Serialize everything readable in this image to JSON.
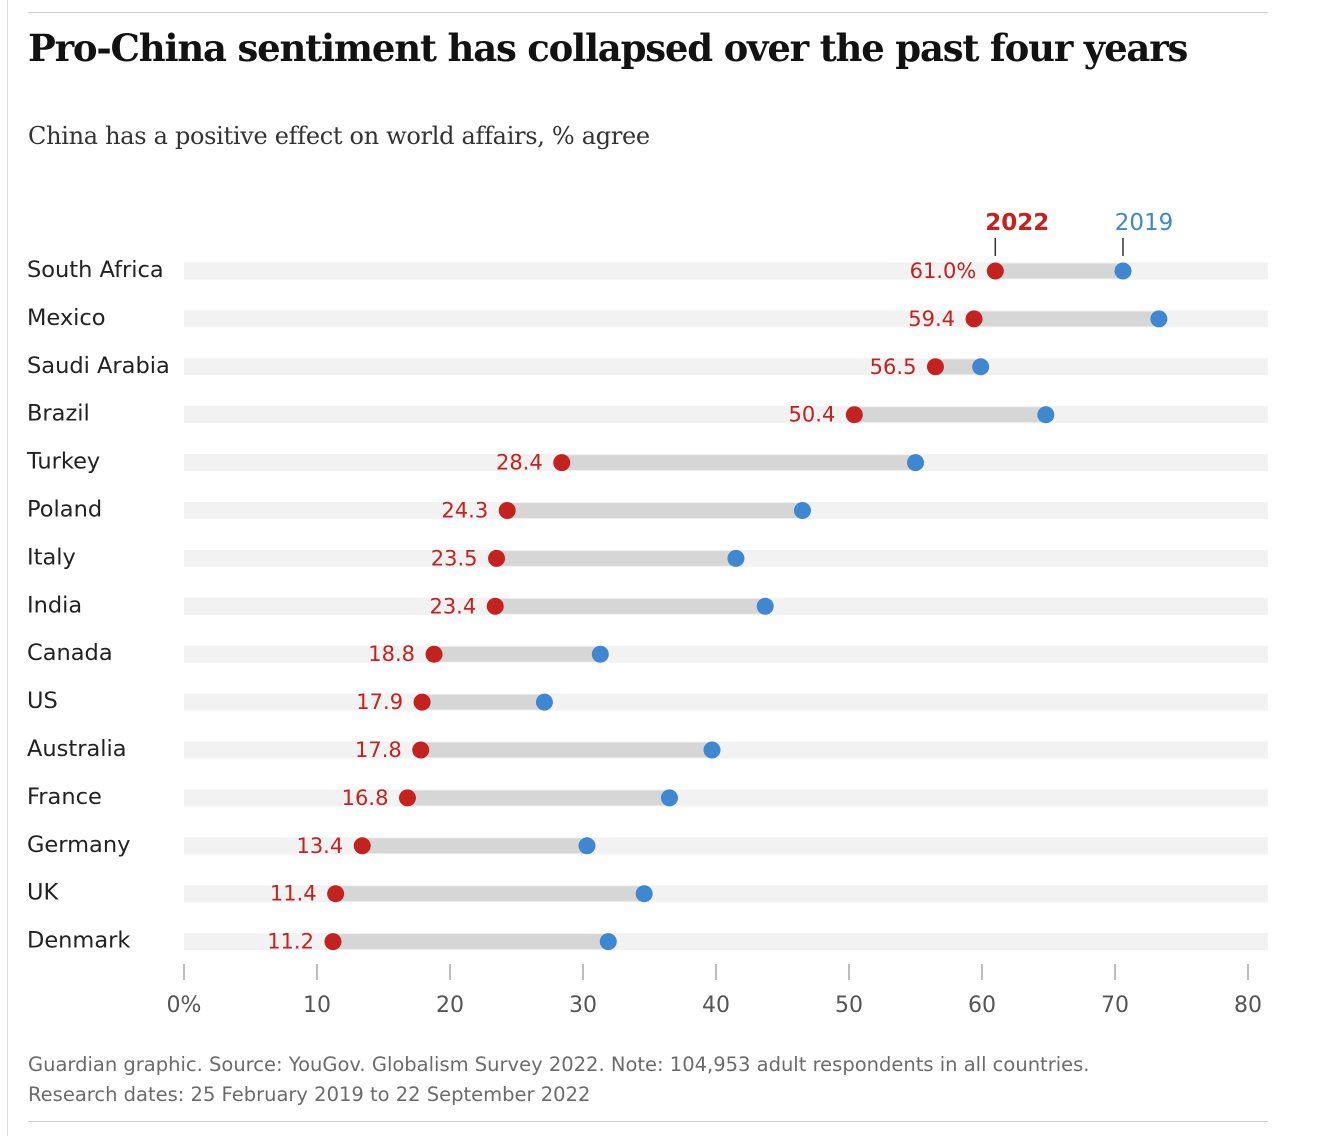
{
  "title": "Pro-China sentiment has collapsed over the past four years",
  "subtitle": "China has a positive effect on world affairs, % agree",
  "footnote": {
    "line1": "Guardian graphic. Source: YouGov. Globalism Survey 2022. Note: 104,953 adult respondents in all countries.",
    "line2": "Research dates: 25 February 2019 to 22 September 2022"
  },
  "colors": {
    "series_2022": "#c4221f",
    "series_2019": "#3f87d0",
    "track": "#f2f2f2",
    "range": "#d6d6d6",
    "axis": "#999999",
    "text": "#222222",
    "tick_text": "#555555"
  },
  "chart_data": {
    "type": "dumbbell",
    "xlim": [
      0,
      80
    ],
    "x_ticks": [
      0,
      10,
      20,
      30,
      40,
      50,
      60,
      70,
      80
    ],
    "x_tick_labels": [
      "0%",
      "10",
      "20",
      "30",
      "40",
      "50",
      "60",
      "70",
      "80"
    ],
    "legend": [
      "2022",
      "2019"
    ],
    "legend_placement": "top-right, above first row",
    "categories": [
      "South Africa",
      "Mexico",
      "Saudi Arabia",
      "Brazil",
      "Turkey",
      "Poland",
      "Italy",
      "India",
      "Canada",
      "US",
      "Australia",
      "France",
      "Germany",
      "UK",
      "Denmark"
    ],
    "series": [
      {
        "name": "2022",
        "values": [
          61.0,
          59.4,
          56.5,
          50.4,
          28.4,
          24.3,
          23.5,
          23.4,
          18.8,
          17.9,
          17.8,
          16.8,
          13.4,
          11.4,
          11.2
        ]
      },
      {
        "name": "2019",
        "values": [
          70.6,
          73.3,
          59.9,
          64.8,
          55.0,
          46.5,
          41.5,
          43.7,
          31.3,
          27.1,
          39.7,
          36.5,
          30.3,
          34.6,
          31.9
        ]
      }
    ],
    "data_labels_2022": [
      "61.0%",
      "59.4",
      "56.5",
      "50.4",
      "28.4",
      "24.3",
      "23.5",
      "23.4",
      "18.8",
      "17.9",
      "17.8",
      "16.8",
      "13.4",
      "11.4",
      "11.2"
    ],
    "grid": false
  }
}
